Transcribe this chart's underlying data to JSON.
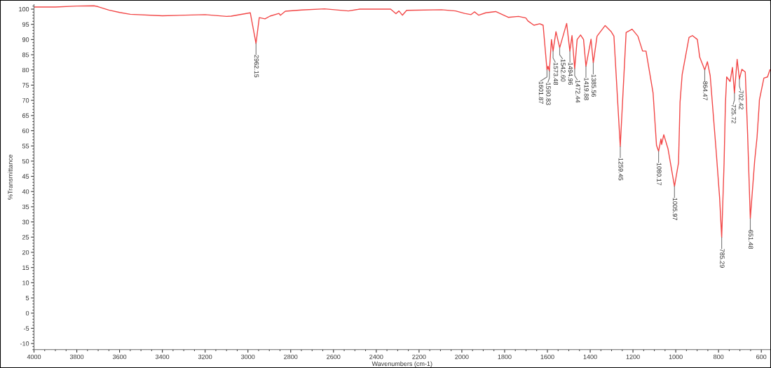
{
  "chart_data": {
    "type": "line",
    "xlabel": "Wavenumbers (cm-1)",
    "ylabel": "%Transmittance",
    "xlim": [
      4000,
      558
    ],
    "ylim": [
      -12,
      101.5
    ],
    "xticks": [
      4000,
      3800,
      3600,
      3400,
      3200,
      3000,
      2800,
      2600,
      2400,
      2200,
      2000,
      1800,
      1600,
      1400,
      1200,
      1000,
      800,
      600
    ],
    "yticks": [
      -10,
      -5,
      0,
      5,
      10,
      15,
      20,
      25,
      30,
      35,
      40,
      45,
      50,
      55,
      60,
      65,
      70,
      75,
      80,
      85,
      90,
      95,
      100
    ],
    "grid": false,
    "legend": false,
    "marker": "none",
    "line_style": "solid",
    "series": [
      {
        "color": "#f24646",
        "x": [
          4000,
          3900,
          3800,
          3720,
          3700,
          3650,
          3600,
          3550,
          3400,
          3200,
          3100,
          3078,
          2989,
          2962.15,
          2947,
          2920,
          2897,
          2855,
          2848,
          2825,
          2749,
          2642,
          2530,
          2477,
          2333,
          2308,
          2294,
          2278,
          2258,
          2095,
          2029,
          1987,
          1957,
          1941,
          1921,
          1888,
          1842,
          1783,
          1735,
          1701,
          1691,
          1663,
          1636,
          1620,
          1601.87,
          1597,
          1590.83,
          1581,
          1573.48,
          1560,
          1542.6,
          1510,
          1494.96,
          1485,
          1472.44,
          1461,
          1445,
          1431,
          1419.88,
          1396,
          1385.56,
          1368,
          1330,
          1303,
          1289,
          1259.45,
          1232,
          1204,
          1177,
          1155,
          1139,
          1106,
          1090,
          1080.17,
          1069,
          1066,
          1056,
          1036,
          1005.97,
          987,
          980,
          970,
          938,
          922,
          899,
          888,
          864.47,
          852,
          839,
          811,
          795,
          785.29,
          774,
          768,
          762,
          746,
          735,
          725.72,
          713,
          702.42,
          691,
          675,
          664,
          651.48,
          631,
          620,
          610,
          609,
          588,
          571,
          560
        ],
        "values": [
          100.7,
          100.7,
          101,
          101.1,
          100.8,
          99.7,
          98.9,
          98.3,
          97.8,
          98.2,
          97.6,
          97.7,
          98.8,
          88.7,
          97.2,
          96.8,
          97.7,
          98.6,
          98,
          99.3,
          99.7,
          100.1,
          99.4,
          100,
          100,
          98.5,
          99.4,
          98,
          99.6,
          99.8,
          99.4,
          98.6,
          98.2,
          99.1,
          98,
          98.8,
          99.2,
          97.3,
          97.6,
          97.1,
          96.1,
          94.7,
          95.2,
          94.7,
          80,
          81.2,
          79.6,
          90,
          86.2,
          92.6,
          87.3,
          95.3,
          86.2,
          91.3,
          80.4,
          90,
          91.5,
          90,
          81.2,
          90.1,
          82.3,
          91.1,
          94.6,
          92.7,
          91.1,
          54.8,
          92.3,
          93.4,
          91.1,
          86.2,
          86.2,
          72.4,
          55.2,
          53.2,
          57.3,
          55.5,
          58.7,
          54,
          41.7,
          49.5,
          69.3,
          78.5,
          90.7,
          91.3,
          90,
          84.2,
          80,
          82.7,
          78.1,
          53.2,
          38,
          24.9,
          49.5,
          68.5,
          77.7,
          76.2,
          80.8,
          72.4,
          83.5,
          77,
          80.2,
          79.3,
          58.7,
          31.1,
          50.2,
          57.8,
          68.5,
          70.1,
          77.3,
          77.7,
          80
        ]
      }
    ],
    "annotations": [
      {
        "text": "2962.15",
        "x": 2962.15,
        "y": 88.7
      },
      {
        "text": "1601.87",
        "x": 1601.87,
        "y": 80
      },
      {
        "text": "1590.83",
        "x": 1590.83,
        "y": 79.6
      },
      {
        "text": "1573.48",
        "x": 1573.48,
        "y": 86.2
      },
      {
        "text": "1542.60",
        "x": 1542.6,
        "y": 87.3
      },
      {
        "text": "1494.96",
        "x": 1494.96,
        "y": 86.2
      },
      {
        "text": "1472.44",
        "x": 1472.44,
        "y": 80.4
      },
      {
        "text": "1419.88",
        "x": 1419.88,
        "y": 81.2
      },
      {
        "text": "1385.56",
        "x": 1385.56,
        "y": 82.3
      },
      {
        "text": "1259.45",
        "x": 1259.45,
        "y": 54.8
      },
      {
        "text": "1080.17",
        "x": 1080.17,
        "y": 53.2
      },
      {
        "text": "1005.97",
        "x": 1005.97,
        "y": 41.7
      },
      {
        "text": "864.47",
        "x": 864.47,
        "y": 80
      },
      {
        "text": "785.29",
        "x": 785.29,
        "y": 24.9
      },
      {
        "text": "725.72",
        "x": 725.72,
        "y": 72.4
      },
      {
        "text": "702.42",
        "x": 702.42,
        "y": 77
      },
      {
        "text": "651.48",
        "x": 651.48,
        "y": 31.1
      }
    ]
  }
}
